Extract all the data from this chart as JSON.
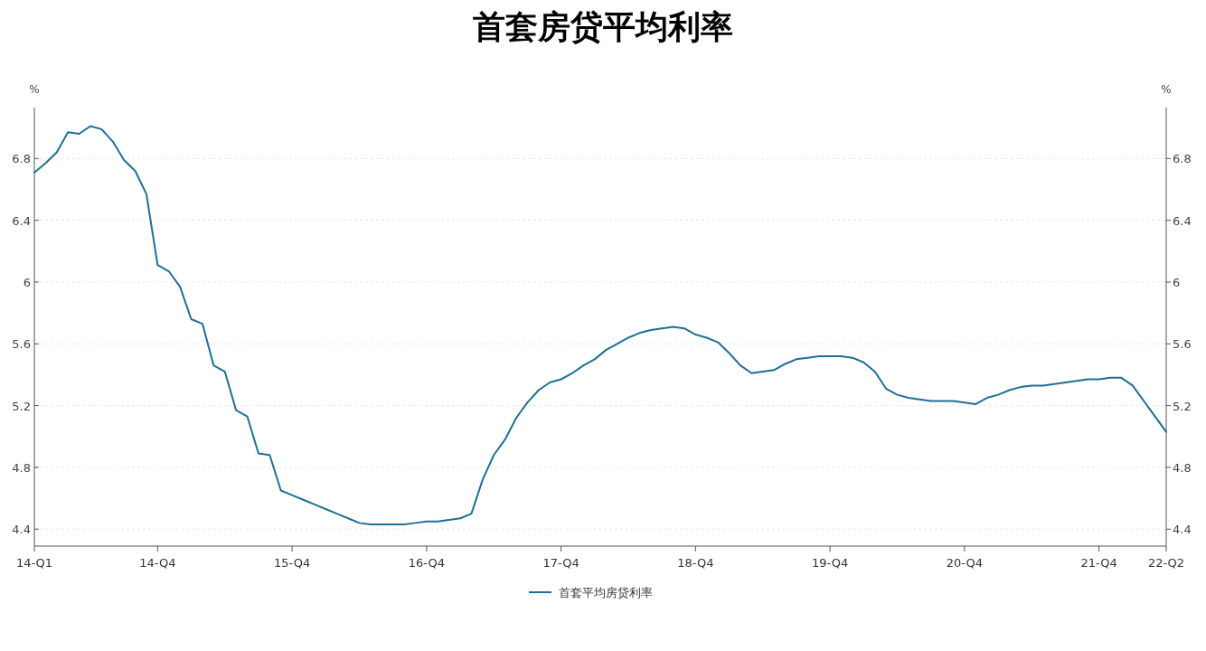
{
  "chart_data": {
    "type": "line",
    "title": "首套房贷平均利率",
    "ylabel": "%",
    "y2label": "%",
    "categories": [
      "14-Q1",
      null,
      null,
      null,
      null,
      null,
      null,
      null,
      null,
      null,
      null,
      "14-Q4",
      null,
      null,
      null,
      null,
      null,
      null,
      null,
      null,
      null,
      null,
      null,
      "15-Q4",
      null,
      null,
      null,
      null,
      null,
      null,
      null,
      null,
      null,
      null,
      null,
      "16-Q4",
      null,
      null,
      null,
      null,
      null,
      null,
      null,
      null,
      null,
      null,
      null,
      "17-Q4",
      null,
      null,
      null,
      null,
      null,
      null,
      null,
      null,
      null,
      null,
      null,
      "18-Q4",
      null,
      null,
      null,
      null,
      null,
      null,
      null,
      null,
      null,
      null,
      null,
      "19-Q4",
      null,
      null,
      null,
      null,
      null,
      null,
      null,
      null,
      null,
      null,
      null,
      "20-Q4",
      null,
      null,
      null,
      null,
      null,
      null,
      null,
      null,
      null,
      null,
      null,
      "21-Q4",
      null,
      null,
      null,
      null,
      null,
      "22-Q2"
    ],
    "series": [
      {
        "name": "首套平均房贷利率",
        "color": "#1f6f94",
        "values": [
          6.71,
          6.77,
          6.84,
          6.97,
          6.96,
          7.01,
          6.99,
          6.91,
          6.79,
          6.72,
          6.57,
          6.11,
          6.07,
          5.97,
          5.76,
          5.73,
          5.46,
          5.42,
          5.17,
          5.13,
          4.89,
          4.88,
          4.65,
          4.62,
          4.59,
          4.56,
          4.53,
          4.5,
          4.47,
          4.44,
          4.43,
          4.43,
          4.43,
          4.43,
          4.44,
          4.45,
          4.45,
          4.46,
          4.47,
          4.5,
          4.72,
          4.88,
          4.98,
          5.12,
          5.22,
          5.3,
          5.35,
          5.37,
          5.41,
          5.46,
          5.5,
          5.56,
          5.6,
          5.64,
          5.67,
          5.69,
          5.7,
          5.71,
          5.7,
          5.66,
          5.64,
          5.61,
          5.54,
          5.46,
          5.41,
          5.42,
          5.43,
          5.47,
          5.5,
          5.51,
          5.52,
          5.52,
          5.52,
          5.51,
          5.48,
          5.42,
          5.31,
          5.27,
          5.25,
          5.24,
          5.23,
          5.23,
          5.23,
          5.22,
          5.21,
          5.25,
          5.27,
          5.3,
          5.32,
          5.33,
          5.33,
          5.34,
          5.35,
          5.36,
          5.37,
          5.37,
          5.38,
          5.38,
          5.33,
          5.23,
          5.13,
          5.03
        ]
      }
    ],
    "ylim": [
      4.29,
      7.13
    ],
    "yticks": [
      4.4,
      4.8,
      5.2,
      5.6,
      6,
      6.4,
      6.8
    ],
    "y2lim": [
      4.29,
      7.13
    ],
    "y2ticks": [
      4.4,
      4.8,
      5.2,
      5.6,
      6,
      6.4,
      6.8
    ],
    "grid": "y",
    "legend": "bottom",
    "marker": "none",
    "line_style": "solid"
  }
}
